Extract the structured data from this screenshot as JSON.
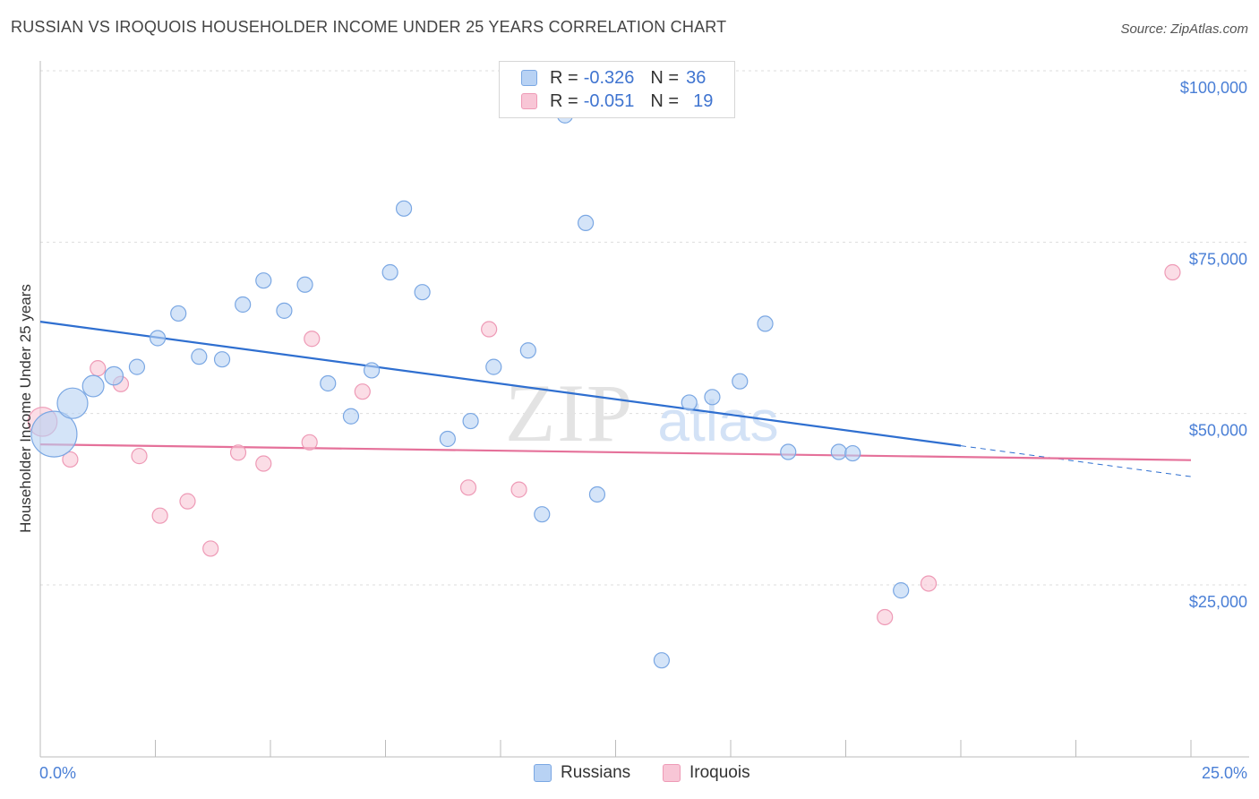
{
  "header": {
    "title": "RUSSIAN VS IROQUOIS HOUSEHOLDER INCOME UNDER 25 YEARS CORRELATION CHART",
    "source": "Source: ZipAtlas.com"
  },
  "legend": {
    "rows": [
      {
        "r_label": "R =",
        "r_value": "-0.326",
        "n_label": "N =",
        "n_value": "36"
      },
      {
        "r_label": "R =",
        "r_value": "-0.051",
        "n_label": "N =",
        "n_value": "19"
      }
    ]
  },
  "bottom_legend": [
    "Russians",
    "Iroquois"
  ],
  "watermark": {
    "zip": "ZIP",
    "atlas": "atlas"
  },
  "colors": {
    "russians_fill": "#b8d2f4",
    "russians_stroke": "#7aa7e3",
    "russians_line": "#2f6fd0",
    "iroquois_fill": "#f8c6d6",
    "iroquois_stroke": "#ee9ab6",
    "iroquois_line": "#e5719a",
    "grid": "#dddddd",
    "tick_text": "#4a7fd6"
  },
  "chart_data": {
    "type": "scatter",
    "title": "RUSSIAN VS IROQUOIS HOUSEHOLDER INCOME UNDER 25 YEARS CORRELATION CHART",
    "xlabel": "",
    "ylabel": "Householder Income Under 25 years",
    "xlim": [
      0,
      25
    ],
    "ylim": [
      0,
      102500
    ],
    "x_tick_labels": [
      "0.0%",
      "25.0%"
    ],
    "y_ticks": [
      25000,
      50000,
      75000,
      100000
    ],
    "y_tick_labels": [
      "$25,000",
      "$50,000",
      "$75,000",
      "$100,000"
    ],
    "grid": true,
    "legend_position": "top-center",
    "series": [
      {
        "name": "Russians",
        "points": [
          {
            "x": 0.3,
            "y": 47000,
            "size": 3
          },
          {
            "x": 0.7,
            "y": 51500,
            "size": 2
          },
          {
            "x": 1.15,
            "y": 54000,
            "size": 1.4
          },
          {
            "x": 1.6,
            "y": 55500,
            "size": 1.2
          },
          {
            "x": 2.1,
            "y": 56800,
            "size": 1
          },
          {
            "x": 2.55,
            "y": 61000,
            "size": 1
          },
          {
            "x": 3.0,
            "y": 64600,
            "size": 1
          },
          {
            "x": 3.45,
            "y": 58300,
            "size": 1
          },
          {
            "x": 3.95,
            "y": 57900,
            "size": 1
          },
          {
            "x": 4.4,
            "y": 65900,
            "size": 1
          },
          {
            "x": 4.85,
            "y": 69400,
            "size": 1
          },
          {
            "x": 5.3,
            "y": 65000,
            "size": 1
          },
          {
            "x": 5.75,
            "y": 68800,
            "size": 1
          },
          {
            "x": 6.25,
            "y": 54400,
            "size": 1
          },
          {
            "x": 6.75,
            "y": 49600,
            "size": 1
          },
          {
            "x": 7.2,
            "y": 56300,
            "size": 1
          },
          {
            "x": 7.6,
            "y": 70600,
            "size": 1
          },
          {
            "x": 7.9,
            "y": 79900,
            "size": 1
          },
          {
            "x": 8.3,
            "y": 67700,
            "size": 1
          },
          {
            "x": 8.85,
            "y": 46300,
            "size": 1
          },
          {
            "x": 9.35,
            "y": 48900,
            "size": 1
          },
          {
            "x": 9.85,
            "y": 56800,
            "size": 1
          },
          {
            "x": 10.6,
            "y": 59200,
            "size": 1
          },
          {
            "x": 10.9,
            "y": 35300,
            "size": 1
          },
          {
            "x": 11.4,
            "y": 93500,
            "size": 1
          },
          {
            "x": 11.85,
            "y": 77800,
            "size": 1
          },
          {
            "x": 12.1,
            "y": 38200,
            "size": 1
          },
          {
            "x": 13.5,
            "y": 14000,
            "size": 1
          },
          {
            "x": 14.1,
            "y": 51600,
            "size": 1
          },
          {
            "x": 14.6,
            "y": 52400,
            "size": 1
          },
          {
            "x": 15.2,
            "y": 54700,
            "size": 1
          },
          {
            "x": 15.75,
            "y": 63100,
            "size": 1
          },
          {
            "x": 16.25,
            "y": 44400,
            "size": 1
          },
          {
            "x": 17.35,
            "y": 44400,
            "size": 1
          },
          {
            "x": 17.65,
            "y": 44200,
            "size": 1
          },
          {
            "x": 18.7,
            "y": 24200,
            "size": 1
          }
        ],
        "trend": {
          "x0": 0,
          "y0": 63400,
          "x1": 20.0,
          "y1": 45300,
          "dash_to_x": 25,
          "dash_y": 40800
        }
      },
      {
        "name": "Iroquois",
        "points": [
          {
            "x": 0.05,
            "y": 48800,
            "size": 1.9
          },
          {
            "x": 0.65,
            "y": 43300,
            "size": 1
          },
          {
            "x": 1.25,
            "y": 56600,
            "size": 1
          },
          {
            "x": 1.75,
            "y": 54300,
            "size": 1
          },
          {
            "x": 2.15,
            "y": 43800,
            "size": 1
          },
          {
            "x": 2.6,
            "y": 35100,
            "size": 1
          },
          {
            "x": 3.2,
            "y": 37200,
            "size": 1
          },
          {
            "x": 3.7,
            "y": 30300,
            "size": 1
          },
          {
            "x": 4.3,
            "y": 44300,
            "size": 1
          },
          {
            "x": 4.85,
            "y": 42700,
            "size": 1
          },
          {
            "x": 5.85,
            "y": 45800,
            "size": 1
          },
          {
            "x": 5.9,
            "y": 60900,
            "size": 1
          },
          {
            "x": 7.0,
            "y": 53200,
            "size": 1
          },
          {
            "x": 9.3,
            "y": 39200,
            "size": 1
          },
          {
            "x": 9.75,
            "y": 62300,
            "size": 1
          },
          {
            "x": 10.4,
            "y": 38900,
            "size": 1
          },
          {
            "x": 18.35,
            "y": 20300,
            "size": 1
          },
          {
            "x": 19.3,
            "y": 25200,
            "size": 1
          },
          {
            "x": 24.6,
            "y": 70600,
            "size": 1
          }
        ],
        "trend": {
          "x0": 0,
          "y0": 45500,
          "x1": 25,
          "y1": 43200
        }
      }
    ]
  }
}
